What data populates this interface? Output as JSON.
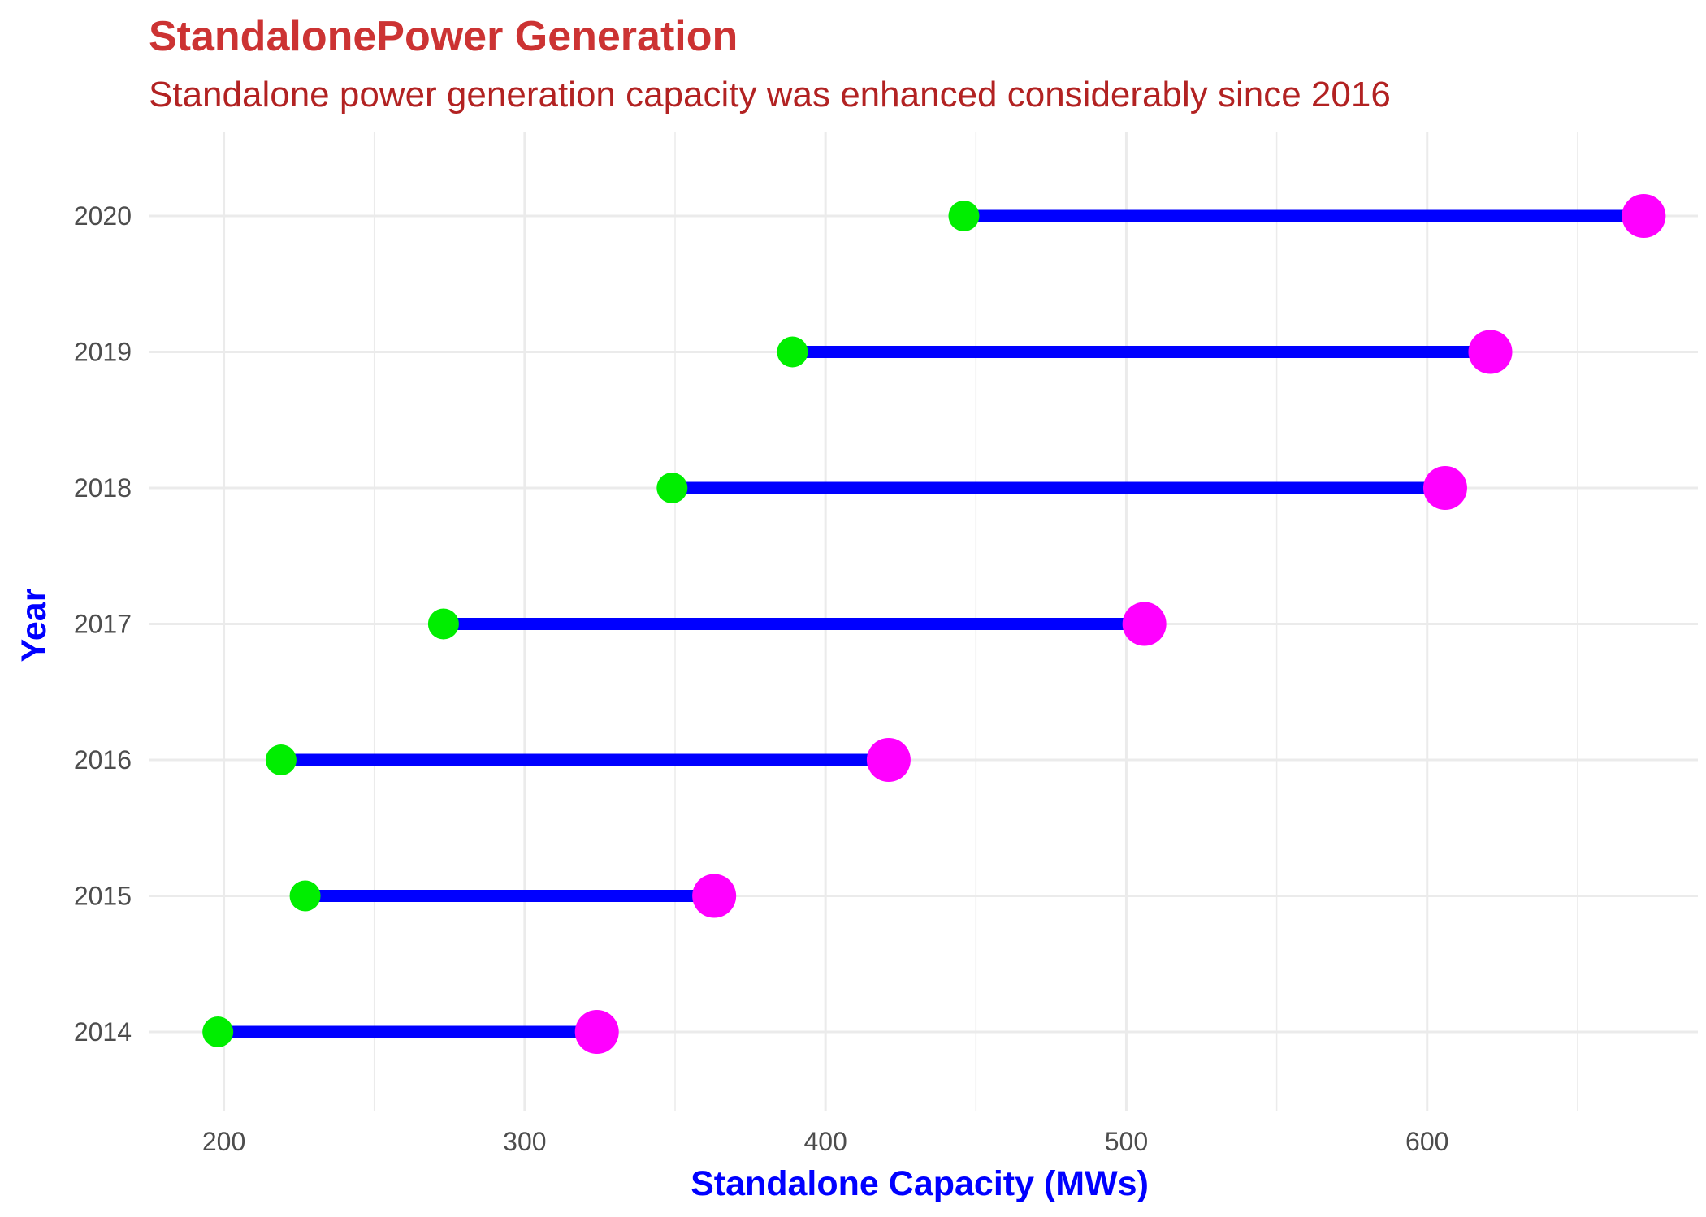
{
  "chart_data": {
    "type": "dumbbell",
    "title": "StandalonePower Generation",
    "subtitle": "Standalone power generation capacity was enhanced considerably since 2016",
    "xlabel": "Standalone Capacity (MWs)",
    "ylabel": "Year",
    "xlim": [
      175,
      690
    ],
    "x_ticks": [
      200,
      300,
      400,
      500,
      600
    ],
    "categories": [
      "2014",
      "2015",
      "2016",
      "2017",
      "2018",
      "2019",
      "2020"
    ],
    "series": [
      {
        "values": [
          198,
          227,
          219,
          273,
          349,
          389,
          446
        ],
        "color": "#00ee00"
      },
      {
        "values": [
          324,
          363,
          421,
          506,
          606,
          621,
          672
        ],
        "color": "#ff00ff"
      }
    ],
    "segment_color": "#0000ff",
    "grid": true,
    "colors": {
      "title": "#cc3333",
      "subtitle": "#b22222",
      "axis_title": "#0000ff",
      "grid": "#ebebeb"
    }
  }
}
